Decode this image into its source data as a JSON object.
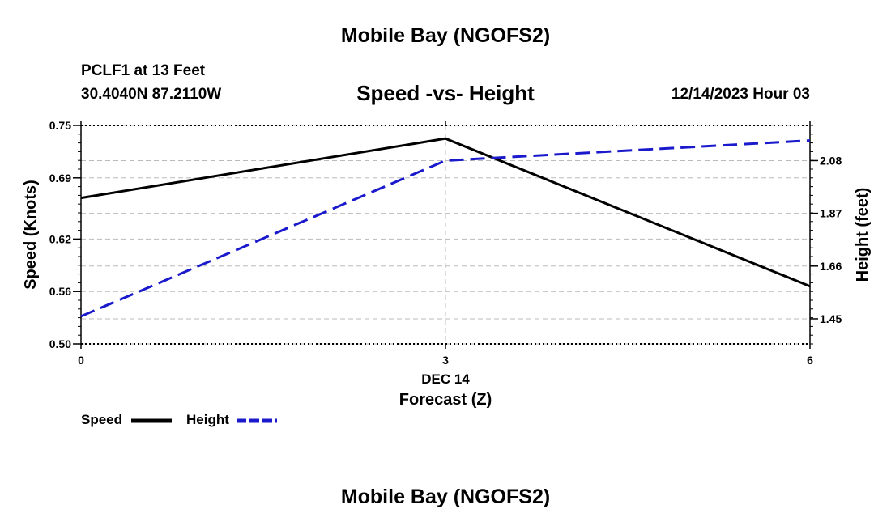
{
  "header": {
    "title": "Mobile Bay (NGOFS2)",
    "station": "PCLF1 at 13 Feet",
    "coords": "30.4040N  87.2110W",
    "chart_title": "Speed -vs- Height",
    "date_hour": "12/14/2023 Hour 03"
  },
  "footer": {
    "title": "Mobile Bay (NGOFS2)"
  },
  "colors": {
    "speed": "#000000",
    "height": "#1a1acc",
    "grid": "#bbbbbb"
  },
  "chart_data": {
    "type": "line",
    "title": "Speed -vs- Height",
    "xlabel": "Forecast (Z)",
    "xlabel_date": "DEC 14",
    "x": [
      0,
      3,
      6
    ],
    "xticks": [
      "0",
      "3",
      "6"
    ],
    "xlim": [
      0,
      6
    ],
    "ylabel_left": "Speed (Knots)",
    "ylim_left": [
      0.5,
      0.75
    ],
    "yticks_left": [
      "0.50",
      "0.56",
      "0.62",
      "0.69",
      "0.75"
    ],
    "ylabel_right": "Height (feet)",
    "ylim_right": [
      1.35,
      2.22
    ],
    "yticks_right": [
      "1.45",
      "1.66",
      "1.87",
      "2.08"
    ],
    "grid": true,
    "series": [
      {
        "name": "Speed",
        "axis": "left",
        "style": "solid",
        "values": [
          0.667,
          0.735,
          0.566
        ]
      },
      {
        "name": "Height",
        "axis": "right",
        "style": "dashed",
        "values": [
          1.46,
          2.08,
          2.16
        ]
      }
    ],
    "legend": [
      "Speed",
      "Height"
    ],
    "legend_position": "bottom-left"
  }
}
